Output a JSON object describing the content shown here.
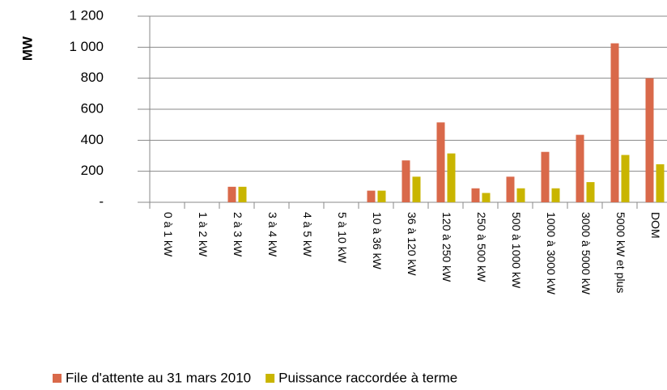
{
  "chart_data": {
    "type": "bar",
    "y_label": "MW",
    "categories": [
      "0 à 1 kW",
      "1 à 2 kW",
      "2 à 3 kW",
      "3 à 4 kW",
      "4 à 5 kW",
      "5 à 10 kW",
      "10 à 36 kW",
      "36 à 120 kW",
      "120 à 250 kW",
      "250 à 500 kW",
      "500 à 1000 kW",
      "1000 à 3000 kW",
      "3000 à 5000 kW",
      "5000 kW et plus",
      "DOM"
    ],
    "series": [
      {
        "name": "File d'attente au 31 mars 2010",
        "color": "#d9694a",
        "values": [
          0,
          0,
          100,
          0,
          0,
          0,
          75,
          270,
          515,
          90,
          165,
          325,
          435,
          1025,
          800
        ]
      },
      {
        "name": "Puissance raccordée à terme",
        "color": "#c9b500",
        "values": [
          0,
          0,
          100,
          0,
          0,
          0,
          75,
          165,
          315,
          60,
          90,
          90,
          130,
          305,
          245
        ]
      }
    ],
    "ylim": [
      0,
      1200
    ],
    "yticks": [
      {
        "value": 0,
        "label": "-"
      },
      200,
      400,
      600,
      800,
      {
        "value": 1000,
        "label": "1 000"
      },
      {
        "value": 1200,
        "label": "1 200"
      }
    ],
    "grid": true,
    "legend": "bottom"
  }
}
